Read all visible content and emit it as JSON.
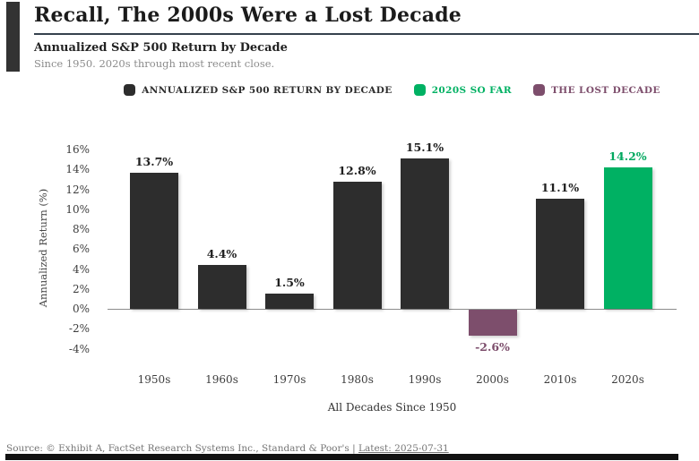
{
  "header": {
    "title": "Recall, The 2000s Were a Lost Decade",
    "subtitle": "Annualized S&P 500 Return by Decade",
    "caption": "Since 1950. 2020s through most recent close."
  },
  "legend": [
    {
      "label": "ANNUALIZED S&P 500 RETURN BY DECADE",
      "color": "#2d2d2d"
    },
    {
      "label": "2020S SO FAR",
      "color": "#00b163"
    },
    {
      "label": "THE LOST DECADE",
      "color": "#7d4e6c"
    }
  ],
  "chart_data": {
    "type": "bar",
    "title": "Annualized S&P 500 Return by Decade",
    "categories": [
      "1950s",
      "1960s",
      "1970s",
      "1980s",
      "1990s",
      "2000s",
      "2010s",
      "2020s"
    ],
    "values": [
      13.7,
      4.4,
      1.5,
      12.8,
      15.1,
      -2.6,
      11.1,
      14.2
    ],
    "value_labels": [
      "13.7%",
      "4.4%",
      "1.5%",
      "12.8%",
      "15.1%",
      "-2.6%",
      "11.1%",
      "14.2%"
    ],
    "bar_colors": [
      "#2d2d2d",
      "#2d2d2d",
      "#2d2d2d",
      "#2d2d2d",
      "#2d2d2d",
      "#7d4e6c",
      "#2d2d2d",
      "#00b163"
    ],
    "label_colors": [
      "#1f1f1f",
      "#1f1f1f",
      "#1f1f1f",
      "#1f1f1f",
      "#1f1f1f",
      "#7d4e6c",
      "#1f1f1f",
      "#00a85f"
    ],
    "xlabel": "All Decades Since 1950",
    "ylabel": "Annualized Return (%)",
    "ylim": [
      -5,
      17
    ],
    "yticks": [
      "16%",
      "14%",
      "12%",
      "10%",
      "8%",
      "6%",
      "4%",
      "2%",
      "0%",
      "-2%",
      "-4%"
    ],
    "ytick_values": [
      16,
      14,
      12,
      10,
      8,
      6,
      4,
      2,
      0,
      -2,
      -4
    ],
    "grid": false,
    "legend_position": "top",
    "baseline": 0
  },
  "footer": {
    "source_prefix": "Source: © Exhibit A, FactSet Research Systems Inc., Standard & Poor's |",
    "latest_link": "Latest: 2025-07-31"
  }
}
